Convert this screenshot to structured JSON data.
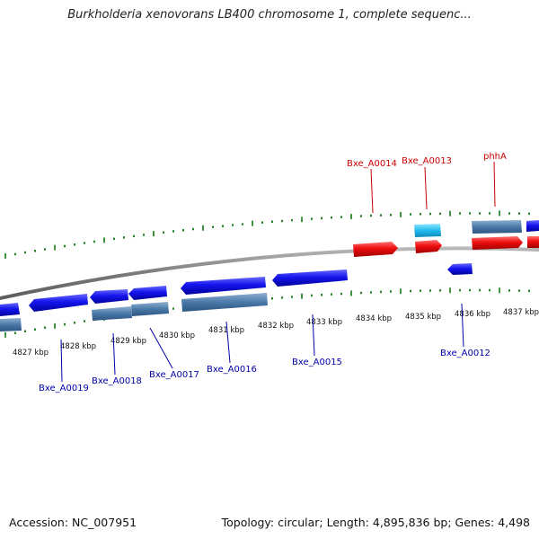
{
  "title": "Burkholderia xenovorans LB400 chromosome 1, complete sequenc...",
  "footer": {
    "accession": "Accession: NC_007951",
    "info": "Topology: circular; Length: 4,895,836 bp; Genes: 4,498"
  },
  "colors": {
    "forward_gene": "#e00000",
    "reverse_gene": "#0000dd",
    "cds": "#4f7fae",
    "highlight": "#22bbee",
    "tick": "#117711",
    "backbone": "#888888",
    "label_red": "#cc0000",
    "label_blue": "#0000aa"
  },
  "scale": {
    "labels": [
      "4827 kbp",
      "4828 kbp",
      "4829 kbp",
      "4830 kbp",
      "4831 kbp",
      "4832 kbp",
      "4833 kbp",
      "4834 kbp",
      "4835 kbp",
      "4836 kbp",
      "4837 kbp"
    ]
  },
  "gene_labels": {
    "top": [
      "Bxe_A0014",
      "Bxe_A0013",
      "phhA"
    ],
    "bottom": [
      "Bxe_A0019",
      "Bxe_A0018",
      "Bxe_A0017",
      "Bxe_A0016",
      "Bxe_A0015",
      "Bxe_A0012"
    ]
  }
}
